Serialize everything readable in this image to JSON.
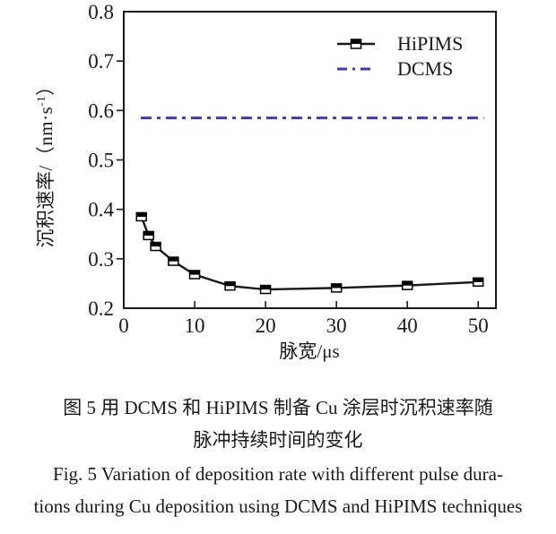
{
  "figure": {
    "caption_zh_line1": "图 5  用 DCMS 和 HiPIMS 制备 Cu 涂层时沉积速率随",
    "caption_zh_line2": "脉冲持续时间的变化",
    "caption_en_line1": "Fig. 5  Variation of deposition rate with different pulse dura-",
    "caption_en_line2": "tions during Cu deposition using DCMS and HiPIMS techniques"
  },
  "chart_data": {
    "type": "line",
    "title": "",
    "xlabel": "脉宽/μs",
    "ylabel": "沉积速率/（nm·s⁻¹）",
    "ylabel_parts": {
      "prefix": "沉积速率/（nm·s",
      "sup": "-1",
      "suffix": "）"
    },
    "xlim": [
      0,
      52.5
    ],
    "ylim": [
      0.2,
      0.8
    ],
    "x_ticks": [
      0,
      10,
      20,
      30,
      40,
      50
    ],
    "y_ticks": [
      0.2,
      0.3,
      0.4,
      0.5,
      0.6,
      0.7,
      0.8
    ],
    "grid": false,
    "legend_position": "top-right-inside",
    "axis_color": "#1a1a1a",
    "series": [
      {
        "name": "HiPIMS",
        "type": "line",
        "marker": "half-filled-square",
        "color": "#1a1a1a",
        "x": [
          2.5,
          3.5,
          4.5,
          7,
          10,
          15,
          20,
          30,
          40,
          50
        ],
        "y": [
          0.385,
          0.347,
          0.325,
          0.295,
          0.268,
          0.245,
          0.238,
          0.241,
          0.246,
          0.253
        ]
      },
      {
        "name": "DCMS",
        "type": "horizontal-dashdot-line",
        "color": "#3e3ea4",
        "value": 0.585,
        "x_range": [
          2.4,
          50.8
        ]
      }
    ]
  }
}
